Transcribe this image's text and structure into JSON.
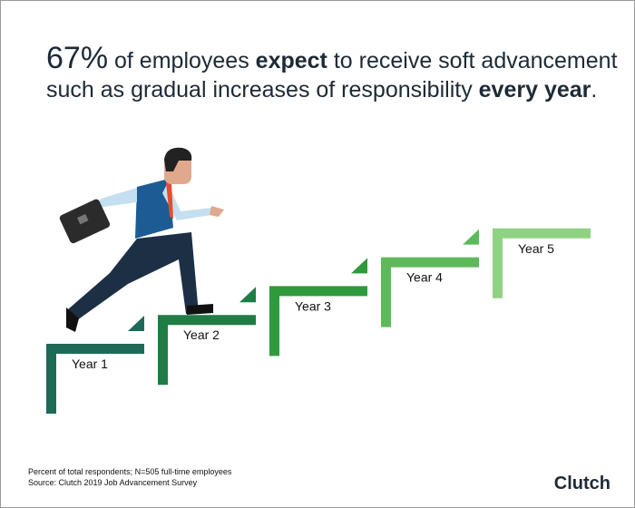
{
  "headline": {
    "stat": "67%",
    "line1": [
      "of employees",
      "expect",
      "to receive soft advancement"
    ],
    "line2": [
      "such as gradual increases of responsibility",
      "every year",
      "."
    ]
  },
  "steps": [
    {
      "label": "Year 1",
      "color": "#1d6b57"
    },
    {
      "label": "Year 2",
      "color": "#1f7c45"
    },
    {
      "label": "Year 3",
      "color": "#2f9a3c"
    },
    {
      "label": "Year 4",
      "color": "#5db95a"
    },
    {
      "label": "Year 5",
      "color": "#8fd283"
    }
  ],
  "footer": {
    "note": "Percent of total respondents; N=505 full-time employees",
    "source": "Source: Clutch 2019 Job Advancement Survey",
    "brand": "Clutch"
  }
}
